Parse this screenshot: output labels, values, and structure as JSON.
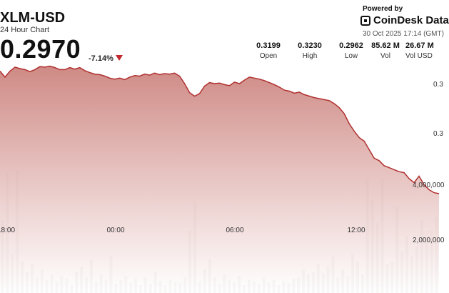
{
  "header": {
    "title": "XLM-USD",
    "subtitle": "24 Hour Chart",
    "price": "0.2970",
    "change": "-7.14%",
    "change_color": "#c0282d"
  },
  "branding": {
    "powered_by": "Powered by",
    "logo_text": "CoinDesk Data",
    "timestamp": "30 Oct 2025 17:14 (GMT)"
  },
  "stats": [
    {
      "value": "0.3199",
      "label": "Open"
    },
    {
      "value": "0.3230",
      "label": "High"
    },
    {
      "value": "0.2962",
      "label": "Low"
    },
    {
      "value": "85.62 M",
      "label": "Vol"
    },
    {
      "value": "26.67 M",
      "label": "Vol USD"
    }
  ],
  "chart_data": {
    "type": "area",
    "colors": {
      "line": "#b0302f",
      "fill_top": "#cf8a85",
      "fill_bottom": "#ffffff",
      "volume_bar": "#7a7a72"
    },
    "x_ticks": [
      "00:00",
      "06:00",
      "12:00"
    ],
    "x_ticks_left_partial": "18:00",
    "price_ticks_right_partial": [
      "0.3",
      "0.3"
    ],
    "volume_ticks": [
      "4,000,000",
      "2,000,000"
    ],
    "price_series": [
      0.3215,
      0.3203,
      0.3215,
      0.3223,
      0.322,
      0.3218,
      0.3214,
      0.3218,
      0.3224,
      0.3223,
      0.3225,
      0.3222,
      0.3218,
      0.3218,
      0.3222,
      0.3219,
      0.3222,
      0.3216,
      0.3212,
      0.3209,
      0.3208,
      0.3205,
      0.3201,
      0.3199,
      0.3201,
      0.3198,
      0.3203,
      0.3206,
      0.3205,
      0.3209,
      0.3207,
      0.3211,
      0.3208,
      0.321,
      0.3209,
      0.3211,
      0.3205,
      0.319,
      0.3172,
      0.3165,
      0.317,
      0.3185,
      0.3192,
      0.319,
      0.3191,
      0.3188,
      0.3186,
      0.3193,
      0.319,
      0.3197,
      0.3203,
      0.3201,
      0.3199,
      0.3196,
      0.3192,
      0.3188,
      0.3183,
      0.3177,
      0.3175,
      0.3171,
      0.3173,
      0.3168,
      0.3165,
      0.3162,
      0.316,
      0.3158,
      0.3156,
      0.315,
      0.3142,
      0.313,
      0.311,
      0.3095,
      0.3082,
      0.3075,
      0.3058,
      0.3041,
      0.3036,
      0.3026,
      0.3022,
      0.3018,
      0.3014,
      0.3012,
      0.3,
      0.2992,
      0.3005,
      0.2988,
      0.2978,
      0.2972,
      0.297
    ],
    "volume_series": [
      2800000,
      4600000,
      1500000,
      4700000,
      1200000,
      800000,
      1100000,
      600000,
      900000,
      500000,
      700000,
      450000,
      650000,
      550000,
      300000,
      800000,
      1000000,
      600000,
      1300000,
      450000,
      700000,
      500000,
      1400000,
      350000,
      500000,
      650000,
      400000,
      550000,
      300000,
      600000,
      350000,
      800000,
      450000,
      300000,
      500000,
      420000,
      380000,
      600000,
      2400000,
      3500000,
      450000,
      900000,
      1300000,
      600000,
      350000,
      700000,
      500000,
      400000,
      650000,
      300000,
      500000,
      450000,
      350000,
      600000,
      400000,
      500000,
      300000,
      450000,
      380000,
      550000,
      600000,
      900000,
      700000,
      800000,
      1100000,
      750000,
      1000000,
      1400000,
      600000,
      900000,
      650000,
      1500000,
      1200000,
      700000,
      4400000,
      3600000,
      2700000,
      4400000,
      1100000,
      1200000,
      3300000,
      1600000,
      2200000,
      1400000,
      1800000,
      2800000,
      2100000,
      2400000,
      2900000
    ]
  }
}
